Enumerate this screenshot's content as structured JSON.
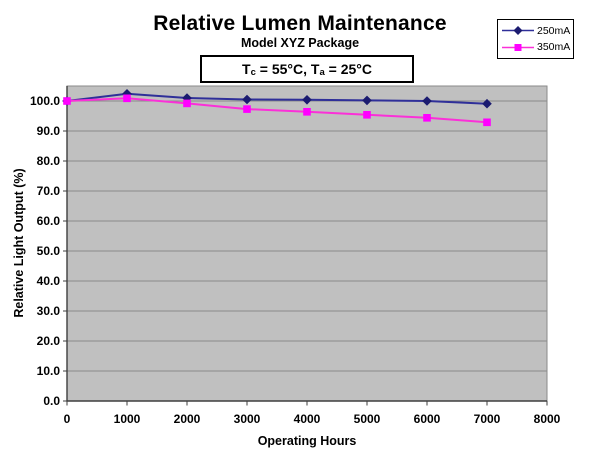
{
  "chart_data": {
    "type": "line",
    "title": "Relative Lumen Maintenance",
    "subtitle": "Model XYZ Package",
    "annotation": {
      "text": "Tc = 55°C, Ta = 25°C",
      "part1": "T",
      "sub1": "c",
      "part2": " = 55°C, T",
      "sub2": "a",
      "part3": " = 25°C"
    },
    "xlabel": "Operating Hours",
    "ylabel": "Relative Light Output (%)",
    "x": [
      0,
      1000,
      2000,
      3000,
      4000,
      5000,
      6000,
      7000
    ],
    "series": [
      {
        "name": "250mA",
        "marker": "diamond",
        "line_color": "#2f2f99",
        "marker_color": "#1b1b70",
        "values": [
          100.0,
          102.4,
          101.0,
          100.5,
          100.4,
          100.2,
          100.0,
          99.1
        ]
      },
      {
        "name": "350mA",
        "marker": "square",
        "line_color": "#fb30d8",
        "marker_color": "#ff00ff",
        "values": [
          100.0,
          100.9,
          99.2,
          97.3,
          96.4,
          95.4,
          94.4,
          92.9
        ]
      }
    ],
    "xlim": [
      0,
      8000
    ],
    "ylim": [
      0,
      105
    ],
    "x_ticks": [
      "0",
      "1000",
      "2000",
      "3000",
      "4000",
      "5000",
      "6000",
      "7000",
      "8000"
    ],
    "x_tick_values": [
      0,
      1000,
      2000,
      3000,
      4000,
      5000,
      6000,
      7000,
      8000
    ],
    "y_ticks": [
      "0.0",
      "10.0",
      "20.0",
      "30.0",
      "40.0",
      "50.0",
      "60.0",
      "70.0",
      "80.0",
      "90.0",
      "100.0"
    ],
    "y_tick_values": [
      0,
      10,
      20,
      30,
      40,
      50,
      60,
      70,
      80,
      90,
      100
    ],
    "grid": "horizontal",
    "legend_position": "top-right",
    "colors": {
      "plot_bg": "#c0c0c0",
      "grid": "#8a8a8a",
      "axis": "#3f3f3f",
      "text": "#000000"
    }
  }
}
